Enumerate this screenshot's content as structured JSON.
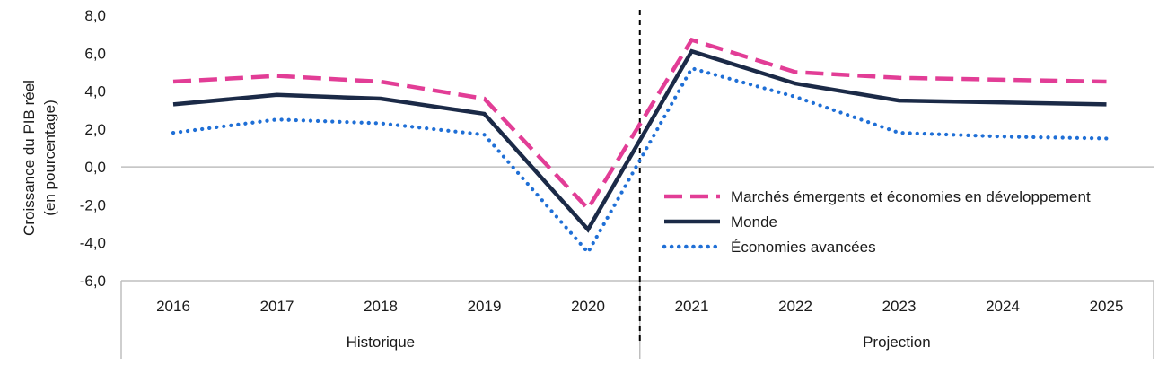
{
  "chart_data": {
    "type": "line",
    "ylabel_lines": [
      "Croissance du PIB réel",
      "(en pourcentage)"
    ],
    "ylim": [
      -6,
      8
    ],
    "yticks": [
      "-6,0",
      "-4,0",
      "-2,0",
      "0,0",
      "2,0",
      "4,0",
      "6,0",
      "8,0"
    ],
    "ytick_values": [
      -6,
      -4,
      -2,
      0,
      2,
      4,
      6,
      8
    ],
    "categories": [
      "2016",
      "2017",
      "2018",
      "2019",
      "2020",
      "2021",
      "2022",
      "2023",
      "2024",
      "2025"
    ],
    "groups": [
      {
        "label": "Historique",
        "count": 5
      },
      {
        "label": "Projection",
        "count": 5
      }
    ],
    "divider_after_index": 4,
    "grid": false,
    "legend_position": "bottom-right",
    "series": [
      {
        "name": "Marchés émergents et économies en développement",
        "color": "#e23d96",
        "style": "dashed",
        "values": [
          4.5,
          4.8,
          4.5,
          3.6,
          -2.2,
          6.7,
          5.0,
          4.7,
          4.6,
          4.5
        ]
      },
      {
        "name": "Monde",
        "color": "#1b2a47",
        "style": "solid",
        "values": [
          3.3,
          3.8,
          3.6,
          2.8,
          -3.3,
          6.1,
          4.4,
          3.5,
          3.4,
          3.3
        ]
      },
      {
        "name": "Économies avancées",
        "color": "#1f6fd6",
        "style": "dotted",
        "values": [
          1.8,
          2.5,
          2.3,
          1.7,
          -4.5,
          5.2,
          3.7,
          1.8,
          1.6,
          1.5
        ]
      }
    ]
  }
}
